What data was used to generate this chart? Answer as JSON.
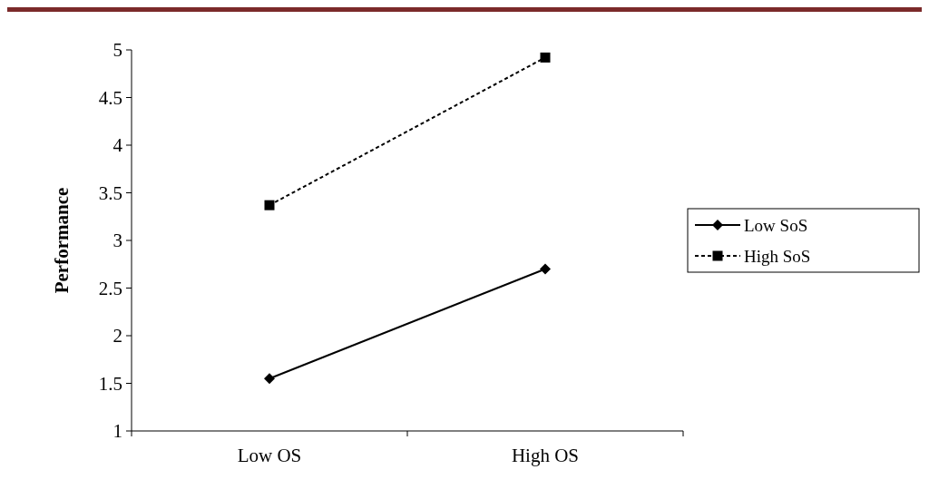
{
  "chart_data": {
    "type": "line",
    "ylabel": "Performance",
    "categories": [
      "Low OS",
      "High OS"
    ],
    "ylim": [
      1,
      5
    ],
    "yticks": [
      1,
      1.5,
      2,
      2.5,
      3,
      3.5,
      4,
      4.5,
      5
    ],
    "grid": false,
    "legend": "right",
    "series": [
      {
        "name": "Low SoS",
        "color": "#000000",
        "values": [
          1.55,
          2.7
        ],
        "marker": "diamond",
        "line_style": "solid"
      },
      {
        "name": "High SoS",
        "color": "#000000",
        "values": [
          3.37,
          4.92
        ],
        "marker": "square",
        "line_style": "dashed"
      }
    ]
  }
}
